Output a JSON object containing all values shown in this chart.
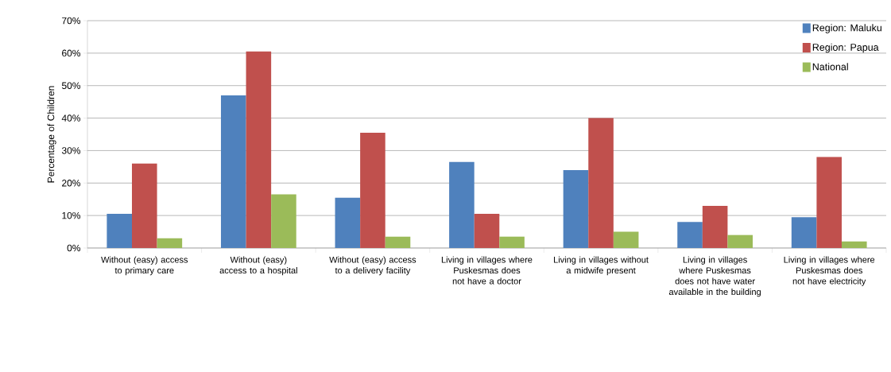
{
  "chart_data": {
    "type": "bar",
    "ylabel": "Percentage of Children",
    "categories": [
      "Without (easy) access to primary care",
      "Without (easy) access to a hospital",
      "Without (easy) access to a delivery facility",
      "Living in villages where Puskesmas does not have a doctor",
      "Living in villages without a midwife present",
      "Living in villages where Puskesmas does not have water available in the building",
      "Living in villages where Puskesmas does not have electricity"
    ],
    "series": [
      {
        "name": "Region: Maluku",
        "color": "#4f81bd",
        "values": [
          10.5,
          47,
          15.5,
          26.5,
          24,
          8,
          9.5
        ]
      },
      {
        "name": "Region: Papua",
        "color": "#c0504d",
        "values": [
          26,
          60.5,
          35.5,
          10.5,
          40,
          13,
          28
        ]
      },
      {
        "name": "National",
        "color": "#9bbb59",
        "values": [
          3,
          16.5,
          3.5,
          3.5,
          5,
          4,
          2
        ]
      }
    ],
    "ylim": [
      0,
      70
    ],
    "yticks": [
      {
        "value": 0,
        "label": "0%"
      },
      {
        "value": 10,
        "label": "10%"
      },
      {
        "value": 20,
        "label": "20%"
      },
      {
        "value": 30,
        "label": "30%"
      },
      {
        "value": 40,
        "label": "40%"
      },
      {
        "value": 50,
        "label": "50%"
      },
      {
        "value": 60,
        "label": "60%"
      },
      {
        "value": 70,
        "label": "70%"
      }
    ],
    "grid": "y",
    "legend": "top right"
  }
}
